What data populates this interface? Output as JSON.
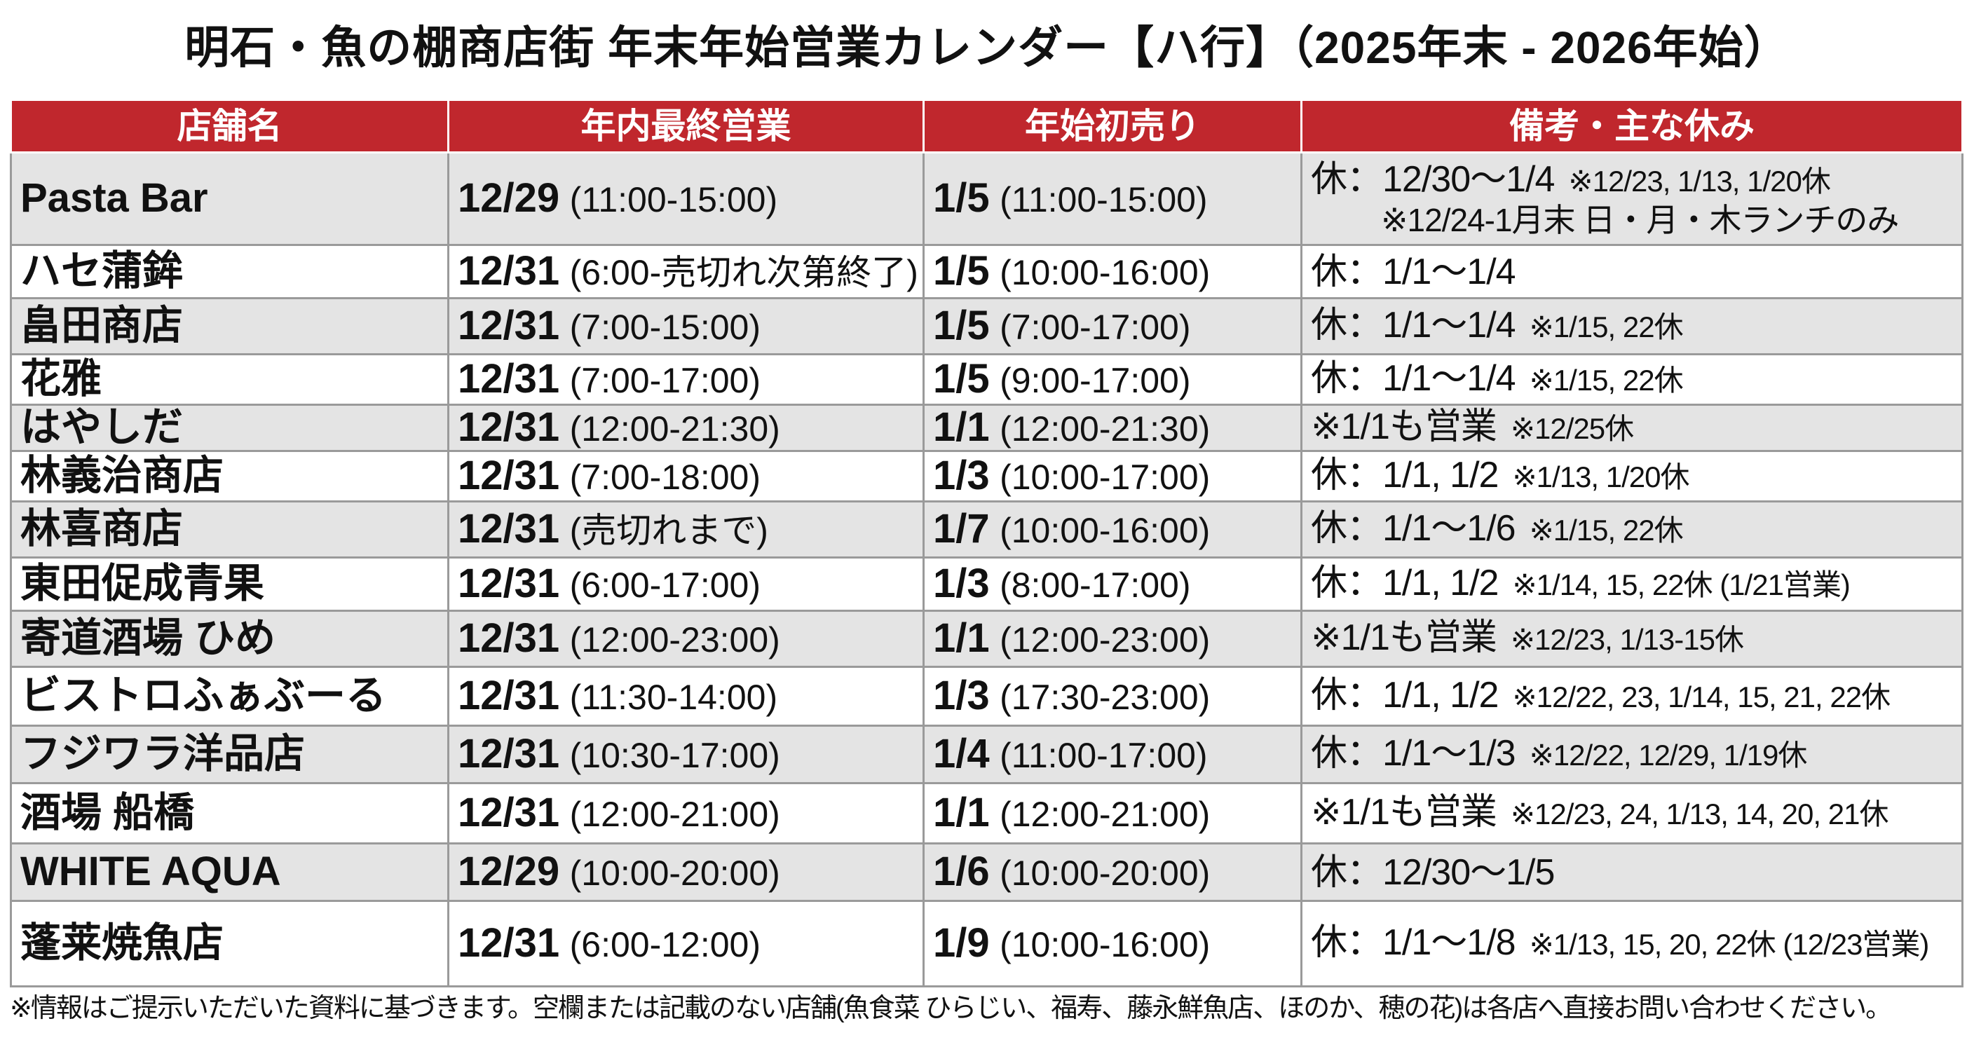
{
  "title": "明石・魚の棚商店街 年末年始営業カレンダー【ハ行】（2025年末 - 2026年始）",
  "colors": {
    "header_bg": "#c0272d",
    "row_alt": "#e4e4e4"
  },
  "headers": [
    "店舗名",
    "年内最終営業",
    "年始初売り",
    "備考・主な休み"
  ],
  "rows": [
    {
      "name": "Pasta Bar",
      "last_date": "12/29",
      "last_time": "(11:00-15:00)",
      "first_date": "1/5",
      "first_time": "(11:00-15:00)",
      "note_main": "休：12/30〜1/4",
      "note_sub": "※12/23, 1/13, 1/20休",
      "note_line2": "※12/24-1月末 日・月・木ランチのみ"
    },
    {
      "name": "ハセ蒲鉾",
      "last_date": "12/31",
      "last_time": "(6:00-売切れ次第終了)",
      "first_date": "1/5",
      "first_time": "(10:00-16:00)",
      "note_main": "休：1/1〜1/4",
      "note_sub": ""
    },
    {
      "name": "畠田商店",
      "last_date": "12/31",
      "last_time": "(7:00-15:00)",
      "first_date": "1/5",
      "first_time": "(7:00-17:00)",
      "note_main": "休：1/1〜1/4",
      "note_sub": "※1/15, 22休"
    },
    {
      "name": "花雅",
      "last_date": "12/31",
      "last_time": "(7:00-17:00)",
      "first_date": "1/5",
      "first_time": "(9:00-17:00)",
      "note_main": "休：1/1〜1/4",
      "note_sub": "※1/15, 22休"
    },
    {
      "name": "はやしだ",
      "last_date": "12/31",
      "last_time": "(12:00-21:30)",
      "first_date": "1/1",
      "first_time": "(12:00-21:30)",
      "note_main": "※1/1も営業",
      "note_sub": "※12/25休"
    },
    {
      "name": "林義治商店",
      "last_date": "12/31",
      "last_time": "(7:00-18:00)",
      "first_date": "1/3",
      "first_time": "(10:00-17:00)",
      "note_main": "休：1/1, 1/2",
      "note_sub": "※1/13, 1/20休"
    },
    {
      "name": "林喜商店",
      "last_date": "12/31",
      "last_time": "(売切れまで)",
      "first_date": "1/7",
      "first_time": "(10:00-16:00)",
      "note_main": "休：1/1〜1/6",
      "note_sub": "※1/15, 22休"
    },
    {
      "name": "東田促成青果",
      "last_date": "12/31",
      "last_time": "(6:00-17:00)",
      "first_date": "1/3",
      "first_time": "(8:00-17:00)",
      "note_main": "休：1/1, 1/2",
      "note_sub": "※1/14, 15, 22休 (1/21営業)"
    },
    {
      "name": "寄道酒場 ひめ",
      "last_date": "12/31",
      "last_time": "(12:00-23:00)",
      "first_date": "1/1",
      "first_time": "(12:00-23:00)",
      "note_main": "※1/1も営業",
      "note_sub": "※12/23, 1/13-15休"
    },
    {
      "name": "ビストロふぁぶーる",
      "last_date": "12/31",
      "last_time": "(11:30-14:00)",
      "first_date": "1/3",
      "first_time": "(17:30-23:00)",
      "note_main": "休：1/1, 1/2",
      "note_sub": "※12/22, 23, 1/14, 15, 21, 22休"
    },
    {
      "name": "フジワラ洋品店",
      "last_date": "12/31",
      "last_time": "(10:30-17:00)",
      "first_date": "1/4",
      "first_time": "(11:00-17:00)",
      "note_main": "休：1/1〜1/3",
      "note_sub": "※12/22, 12/29, 1/19休"
    },
    {
      "name": "酒場 船橋",
      "last_date": "12/31",
      "last_time": "(12:00-21:00)",
      "first_date": "1/1",
      "first_time": "(12:00-21:00)",
      "note_main": "※1/1も営業",
      "note_sub": "※12/23, 24, 1/13, 14, 20, 21休"
    },
    {
      "name": "WHITE AQUA",
      "last_date": "12/29",
      "last_time": "(10:00-20:00)",
      "first_date": "1/6",
      "first_time": "(10:00-20:00)",
      "note_main": "休：12/30〜1/5",
      "note_sub": ""
    },
    {
      "name": "蓬莱焼魚店",
      "last_date": "12/31",
      "last_time": "(6:00-12:00)",
      "first_date": "1/9",
      "first_time": "(10:00-16:00)",
      "note_main": "休：1/1〜1/8",
      "note_sub": "※1/13, 15, 20, 22休 (12/23営業)"
    }
  ],
  "footer": "※情報はご提示いただいた資料に基づきます。空欄または記載のない店舗(魚食菜 ひらじい、福寿、藤永鮮魚店、ほのか、穂の花)は各店へ直接お問い合わせください。"
}
